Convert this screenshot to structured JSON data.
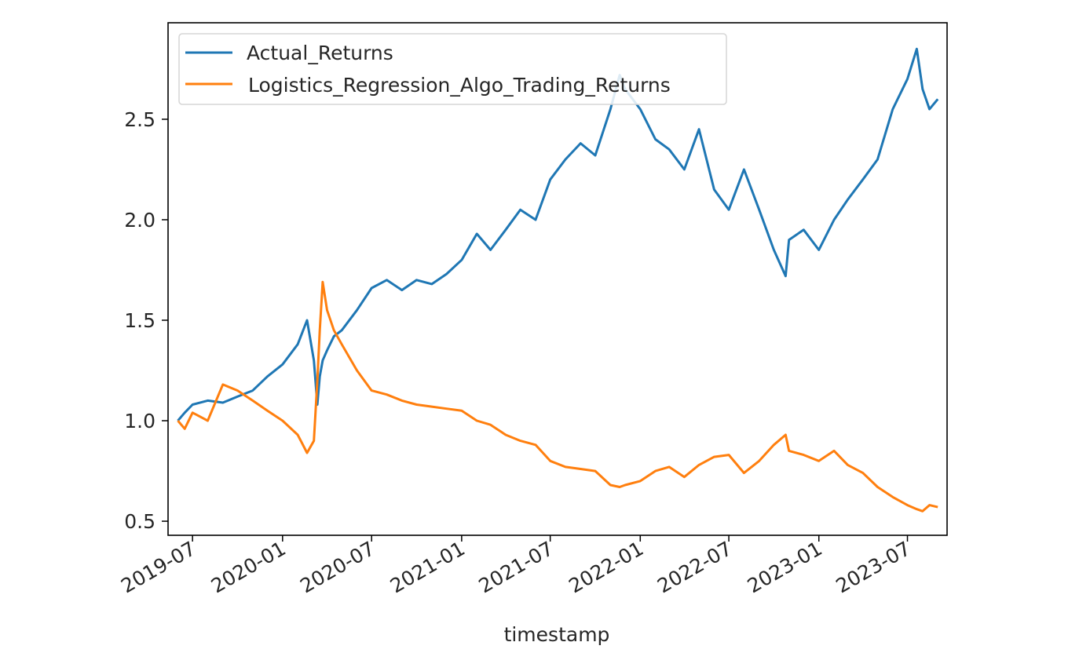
{
  "chart_data": {
    "type": "line",
    "title": "",
    "xlabel": "timestamp",
    "ylabel": "",
    "x_range": [
      "2019-05-12",
      "2023-09-20"
    ],
    "ylim": [
      0.43,
      2.98
    ],
    "grid": false,
    "legend_position": "top-left",
    "x_ticks": [
      "2019-07",
      "2020-01",
      "2020-07",
      "2021-01",
      "2021-07",
      "2022-01",
      "2022-07",
      "2023-01",
      "2023-07"
    ],
    "y_ticks": [
      "0.5",
      "1.0",
      "1.5",
      "2.0",
      "2.5"
    ],
    "x": [
      "2019-06-01",
      "2019-06-15",
      "2019-07-01",
      "2019-08-01",
      "2019-09-01",
      "2019-10-01",
      "2019-11-01",
      "2019-12-01",
      "2020-01-01",
      "2020-02-01",
      "2020-02-20",
      "2020-03-05",
      "2020-03-12",
      "2020-03-17",
      "2020-03-23",
      "2020-04-01",
      "2020-04-15",
      "2020-05-01",
      "2020-06-01",
      "2020-07-01",
      "2020-08-01",
      "2020-09-01",
      "2020-10-01",
      "2020-11-01",
      "2020-12-01",
      "2021-01-01",
      "2021-02-01",
      "2021-03-01",
      "2021-04-01",
      "2021-05-01",
      "2021-06-01",
      "2021-07-01",
      "2021-08-01",
      "2021-09-01",
      "2021-10-01",
      "2021-11-01",
      "2021-11-20",
      "2021-12-01",
      "2022-01-01",
      "2022-02-01",
      "2022-03-01",
      "2022-04-01",
      "2022-05-01",
      "2022-06-01",
      "2022-07-01",
      "2022-08-01",
      "2022-09-01",
      "2022-10-01",
      "2022-10-25",
      "2022-11-01",
      "2022-12-01",
      "2023-01-01",
      "2023-02-01",
      "2023-03-01",
      "2023-04-01",
      "2023-05-01",
      "2023-06-01",
      "2023-07-01",
      "2023-07-20",
      "2023-08-01",
      "2023-08-15",
      "2023-09-01"
    ],
    "series": [
      {
        "name": "Actual_Returns",
        "color": "#1f77b4",
        "values": [
          1.0,
          1.04,
          1.08,
          1.1,
          1.09,
          1.12,
          1.15,
          1.22,
          1.28,
          1.38,
          1.5,
          1.3,
          1.08,
          1.22,
          1.3,
          1.35,
          1.42,
          1.45,
          1.55,
          1.66,
          1.7,
          1.65,
          1.7,
          1.68,
          1.73,
          1.8,
          1.93,
          1.85,
          1.95,
          2.05,
          2.0,
          2.2,
          2.3,
          2.38,
          2.32,
          2.55,
          2.72,
          2.65,
          2.55,
          2.4,
          2.35,
          2.25,
          2.45,
          2.15,
          2.05,
          2.25,
          2.05,
          1.85,
          1.72,
          1.9,
          1.95,
          1.85,
          2.0,
          2.1,
          2.2,
          2.3,
          2.55,
          2.7,
          2.85,
          2.65,
          2.55,
          2.6
        ]
      },
      {
        "name": "Logistics_Regression_Algo_Trading_Returns",
        "color": "#ff7f0e",
        "values": [
          1.0,
          0.96,
          1.04,
          1.0,
          1.18,
          1.15,
          1.1,
          1.05,
          1.0,
          0.93,
          0.84,
          0.9,
          1.2,
          1.45,
          1.69,
          1.55,
          1.45,
          1.38,
          1.25,
          1.15,
          1.13,
          1.1,
          1.08,
          1.07,
          1.06,
          1.05,
          1.0,
          0.98,
          0.93,
          0.9,
          0.88,
          0.8,
          0.77,
          0.76,
          0.75,
          0.68,
          0.67,
          0.68,
          0.7,
          0.75,
          0.77,
          0.72,
          0.78,
          0.82,
          0.83,
          0.74,
          0.8,
          0.88,
          0.93,
          0.85,
          0.83,
          0.8,
          0.85,
          0.78,
          0.74,
          0.67,
          0.62,
          0.58,
          0.56,
          0.55,
          0.58,
          0.57
        ]
      }
    ]
  }
}
